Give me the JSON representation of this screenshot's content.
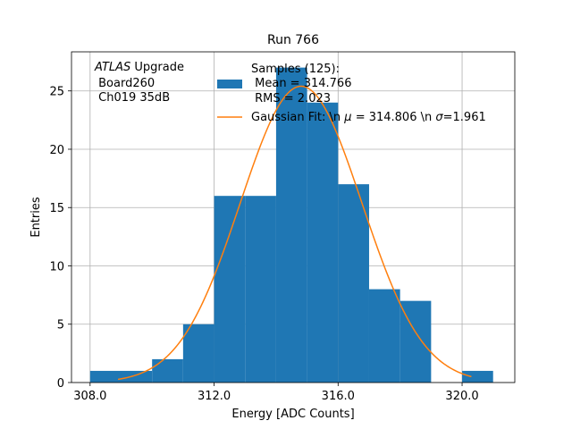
{
  "chart_data": {
    "type": "histogram",
    "title": "Run 766",
    "xlabel": "Energy [ADC Counts]",
    "ylabel": "Entries",
    "xlim": [
      307.4,
      321.7
    ],
    "ylim": [
      0,
      28.35
    ],
    "x_ticks": [
      308.0,
      312.0,
      316.0,
      320.0
    ],
    "x_tick_labels": [
      "308.0",
      "312.0",
      "316.0",
      "320.0"
    ],
    "y_ticks": [
      0,
      5,
      10,
      15,
      20,
      25
    ],
    "y_tick_labels": [
      "0",
      "5",
      "10",
      "15",
      "20",
      "25"
    ],
    "grid": true,
    "bins": [
      {
        "x0": 308.0,
        "x1": 309.0,
        "count": 1
      },
      {
        "x0": 309.0,
        "x1": 310.0,
        "count": 1
      },
      {
        "x0": 310.0,
        "x1": 311.0,
        "count": 2
      },
      {
        "x0": 311.0,
        "x1": 312.0,
        "count": 5
      },
      {
        "x0": 312.0,
        "x1": 313.0,
        "count": 16
      },
      {
        "x0": 313.0,
        "x1": 314.0,
        "count": 16
      },
      {
        "x0": 314.0,
        "x1": 315.0,
        "count": 27
      },
      {
        "x0": 315.0,
        "x1": 316.0,
        "count": 24
      },
      {
        "x0": 316.0,
        "x1": 317.0,
        "count": 17
      },
      {
        "x0": 317.0,
        "x1": 318.0,
        "count": 8
      },
      {
        "x0": 318.0,
        "x1": 319.0,
        "count": 7
      },
      {
        "x0": 319.0,
        "x1": 320.0,
        "count": 0
      },
      {
        "x0": 320.0,
        "x1": 321.0,
        "count": 1
      }
    ],
    "fit": {
      "mu": 314.806,
      "sigma": 1.961,
      "amplitude": 25.4,
      "x_range": [
        308.9,
        320.3
      ]
    },
    "bar_color": "#1f77b4",
    "fit_color": "#ff7f0e",
    "annotation": {
      "line1_italic": "ATLAS",
      "line1_rest": " Upgrade",
      "line2": " Board260",
      "line3": " Ch019 35dB"
    },
    "legend": {
      "placement": "top-right",
      "hist_lines": [
        "Samples (125):",
        " Mean = 314.766",
        " RMS = 2.023"
      ],
      "fit_prefix": "Gaussian Fit: \\n ",
      "fit_mu_symbol": "μ",
      "fit_middle": " = 314.806 \\n ",
      "fit_sigma_symbol": "σ",
      "fit_suffix": "=1.961"
    }
  }
}
